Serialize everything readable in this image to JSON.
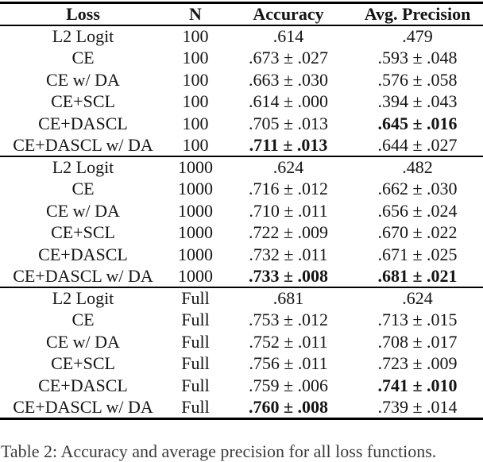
{
  "table": {
    "headers": [
      "Loss",
      "N",
      "Accuracy",
      "Avg. Precision"
    ],
    "sections": [
      {
        "rows": [
          {
            "cells": [
              "L2 Logit",
              "100",
              ".614",
              ".479"
            ],
            "bold_cols": []
          },
          {
            "cells": [
              "CE",
              "100",
              ".673 ± .027",
              ".593 ± .048"
            ],
            "bold_cols": []
          },
          {
            "cells": [
              "CE w/ DA",
              "100",
              ".663 ± .030",
              ".576 ± .058"
            ],
            "bold_cols": []
          },
          {
            "cells": [
              "CE+SCL",
              "100",
              ".614 ± .000",
              ".394 ± .043"
            ],
            "bold_cols": []
          },
          {
            "cells": [
              "CE+DASCL",
              "100",
              ".705 ± .013",
              ".645 ± .016"
            ],
            "bold_cols": [
              3
            ]
          },
          {
            "cells": [
              "CE+DASCL w/ DA",
              "100",
              ".711 ± .013",
              ".644 ± .027"
            ],
            "bold_cols": [
              2
            ]
          }
        ]
      },
      {
        "rows": [
          {
            "cells": [
              "L2 Logit",
              "1000",
              ".624",
              ".482"
            ],
            "bold_cols": []
          },
          {
            "cells": [
              "CE",
              "1000",
              ".716 ± .012",
              ".662 ± .030"
            ],
            "bold_cols": []
          },
          {
            "cells": [
              "CE w/ DA",
              "1000",
              ".710 ± .011",
              ".656 ± .024"
            ],
            "bold_cols": []
          },
          {
            "cells": [
              "CE+SCL",
              "1000",
              ".722 ± .009",
              ".670 ± .022"
            ],
            "bold_cols": []
          },
          {
            "cells": [
              "CE+DASCL",
              "1000",
              ".732 ± .011",
              ".671 ± .025"
            ],
            "bold_cols": []
          },
          {
            "cells": [
              "CE+DASCL w/ DA",
              "1000",
              ".733 ± .008",
              ".681 ± .021"
            ],
            "bold_cols": [
              2,
              3
            ]
          }
        ]
      },
      {
        "rows": [
          {
            "cells": [
              "L2 Logit",
              "Full",
              ".681",
              ".624"
            ],
            "bold_cols": []
          },
          {
            "cells": [
              "CE",
              "Full",
              ".753 ± .012",
              ".713 ± .015"
            ],
            "bold_cols": []
          },
          {
            "cells": [
              "CE w/ DA",
              "Full",
              ".752 ± .011",
              ".708 ± .017"
            ],
            "bold_cols": []
          },
          {
            "cells": [
              "CE+SCL",
              "Full",
              ".756 ± .011",
              ".723 ± .009"
            ],
            "bold_cols": []
          },
          {
            "cells": [
              "CE+DASCL",
              "Full",
              ".759 ± .006",
              ".741 ± .010"
            ],
            "bold_cols": [
              3
            ]
          },
          {
            "cells": [
              "CE+DASCL w/ DA",
              "Full",
              ".760 ± .008",
              ".739 ± .014"
            ],
            "bold_cols": [
              2
            ]
          }
        ]
      }
    ]
  },
  "caption_fragment": "Table 2: Accuracy and average precision for all loss functions."
}
